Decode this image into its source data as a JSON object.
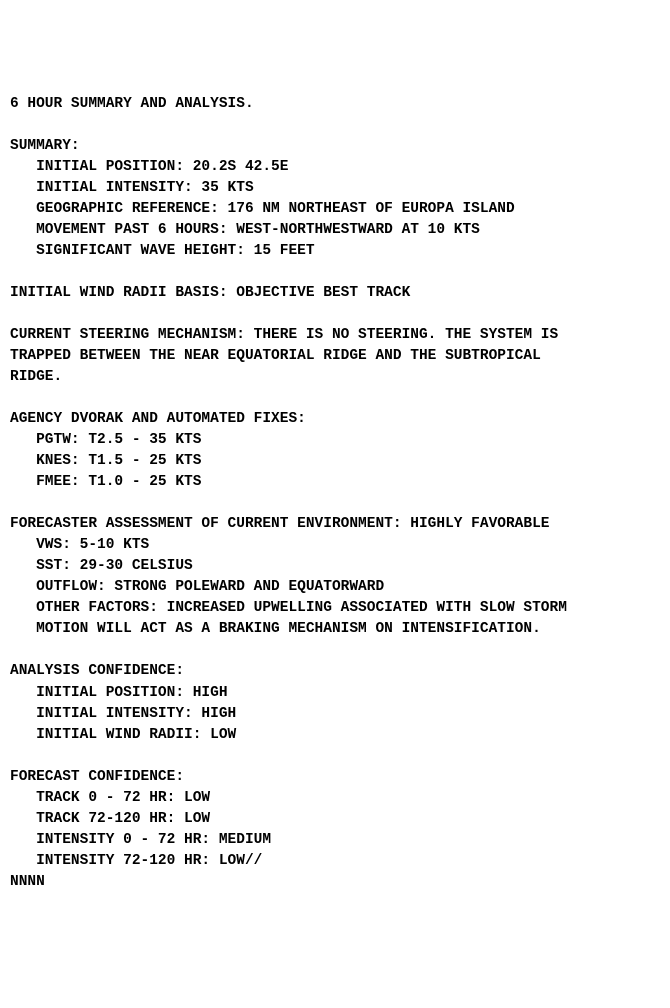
{
  "title": "6 HOUR SUMMARY AND ANALYSIS.",
  "summary": {
    "heading": "SUMMARY:",
    "initial_position": "   INITIAL POSITION: 20.2S 42.5E",
    "initial_intensity": "   INITIAL INTENSITY: 35 KTS",
    "geo_ref": "   GEOGRAPHIC REFERENCE: 176 NM NORTHEAST OF EUROPA ISLAND",
    "movement": "   MOVEMENT PAST 6 HOURS: WEST-NORTHWESTWARD AT 10 KTS",
    "swh": "   SIGNIFICANT WAVE HEIGHT: 15 FEET"
  },
  "wind_radii_basis": "INITIAL WIND RADII BASIS: OBJECTIVE BEST TRACK",
  "steering": {
    "l1": "CURRENT STEERING MECHANISM: THERE IS NO STEERING. THE SYSTEM IS",
    "l2": "TRAPPED BETWEEN THE NEAR EQUATORIAL RIDGE AND THE SUBTROPICAL",
    "l3": "RIDGE."
  },
  "fixes": {
    "heading": "AGENCY DVORAK AND AUTOMATED FIXES:",
    "pgtw": "   PGTW: T2.5 - 35 KTS",
    "knes": "   KNES: T1.5 - 25 KTS",
    "fmee": "   FMEE: T1.0 - 25 KTS"
  },
  "env": {
    "heading": "FORECASTER ASSESSMENT OF CURRENT ENVIRONMENT: HIGHLY FAVORABLE",
    "vws": "   VWS: 5-10 KTS",
    "sst": "   SST: 29-30 CELSIUS",
    "outflow": "   OUTFLOW: STRONG POLEWARD AND EQUATORWARD",
    "other1": "   OTHER FACTORS: INCREASED UPWELLING ASSOCIATED WITH SLOW STORM",
    "other2": "   MOTION WILL ACT AS A BRAKING MECHANISM ON INTENSIFICATION."
  },
  "analysis_conf": {
    "heading": "ANALYSIS CONFIDENCE:",
    "pos": "   INITIAL POSITION: HIGH",
    "int": "   INITIAL INTENSITY: HIGH",
    "radii": "   INITIAL WIND RADII: LOW"
  },
  "forecast_conf": {
    "heading": "FORECAST CONFIDENCE:",
    "t1": "   TRACK 0 - 72 HR: LOW",
    "t2": "   TRACK 72-120 HR: LOW",
    "i1": "   INTENSITY 0 - 72 HR: MEDIUM",
    "i2": "   INTENSITY 72-120 HR: LOW//"
  },
  "footer": "NNNN"
}
